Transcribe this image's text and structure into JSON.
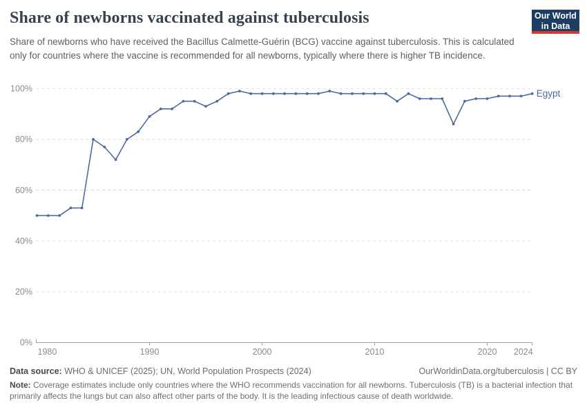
{
  "header": {
    "title": "Share of newborns vaccinated against tuberculosis",
    "subtitle": "Share of newborns who have received the Bacillus Calmette-Guérin (BCG) vaccine against tuberculosis. This is calculated only for countries where the vaccine is recommended for all newborns, typically where there is higher TB incidence."
  },
  "logo": {
    "line1": "Our World",
    "line2": "in Data",
    "bg_color": "#1d3d63",
    "bar_color": "#d7382d"
  },
  "chart_data": {
    "type": "line",
    "title": "Share of newborns vaccinated against tuberculosis",
    "xlabel": "",
    "ylabel": "",
    "ylim": [
      0,
      100
    ],
    "xlim": [
      1980,
      2024
    ],
    "grid": "horizontal-dashed",
    "legend_position": "end-of-line-label",
    "x": [
      1980,
      1981,
      1982,
      1983,
      1984,
      1985,
      1986,
      1987,
      1988,
      1989,
      1990,
      1991,
      1992,
      1993,
      1994,
      1995,
      1996,
      1997,
      1998,
      1999,
      2000,
      2001,
      2002,
      2003,
      2004,
      2005,
      2006,
      2007,
      2008,
      2009,
      2010,
      2011,
      2012,
      2013,
      2014,
      2015,
      2016,
      2017,
      2018,
      2019,
      2020,
      2021,
      2022,
      2023,
      2024
    ],
    "series": [
      {
        "name": "Egypt",
        "color": "#4C6A9C",
        "values": [
          50,
          50,
          50,
          53,
          53,
          80,
          77,
          72,
          80,
          83,
          89,
          92,
          92,
          95,
          95,
          93,
          95,
          98,
          99,
          98,
          98,
          98,
          98,
          98,
          98,
          98,
          99,
          98,
          98,
          98,
          98,
          98,
          95,
          98,
          96,
          96,
          96,
          86,
          95,
          96,
          96,
          97,
          97,
          97,
          98
        ]
      }
    ],
    "yticks": {
      "values": [
        0,
        20,
        40,
        60,
        80,
        100
      ],
      "labels": [
        "0%",
        "20%",
        "40%",
        "60%",
        "80%",
        "100%"
      ]
    },
    "xticks": {
      "values": [
        1980,
        1990,
        2000,
        2010,
        2020,
        2024
      ],
      "labels": [
        "1980",
        "1990",
        "2000",
        "2010",
        "2020",
        "2024"
      ]
    },
    "colors": {
      "line": "#4C6A9C",
      "grid": "#dadada",
      "axis": "#9e9e9e",
      "tick_text": "#8b8b8b"
    }
  },
  "footer": {
    "data_source_label": "Data source:",
    "data_source_text": " WHO & UNICEF (2025); UN, World Population Prospects (2024)",
    "link_text": "OurWorldinData.org/tuberculosis | CC BY",
    "note_label": "Note:",
    "note_text": " Coverage estimates include only countries where the WHO recommends vaccination for all newborns. Tuberculosis (TB) is a bacterial infection that primarily affects the lungs but can also affect other parts of the body. It is the leading infectious cause of death worldwide."
  }
}
